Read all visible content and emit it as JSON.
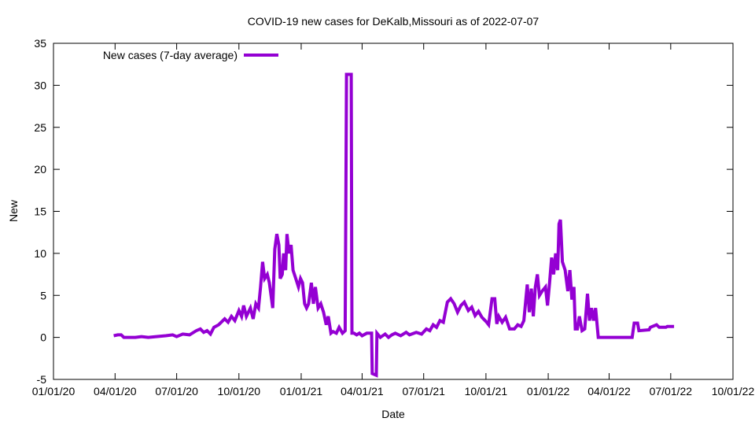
{
  "chart_data": {
    "type": "line",
    "title": "COVID-19 new cases for DeKalb,Missouri as of 2022-07-07",
    "xlabel": "Date",
    "ylabel": "New",
    "xlim": [
      "2020-01-01",
      "2022-10-01"
    ],
    "ylim": [
      -5,
      35
    ],
    "grid": false,
    "legend_placement": "top-left",
    "x_ticks": [
      "01/01/20",
      "04/01/20",
      "07/01/20",
      "10/01/20",
      "01/01/21",
      "04/01/21",
      "07/01/21",
      "10/01/21",
      "01/01/22",
      "04/01/22",
      "07/01/22",
      "10/01/22"
    ],
    "x_tick_dates": [
      "2020-01-01",
      "2020-04-01",
      "2020-07-01",
      "2020-10-01",
      "2021-01-01",
      "2021-04-01",
      "2021-07-01",
      "2021-10-01",
      "2022-01-01",
      "2022-04-01",
      "2022-07-01",
      "2022-10-01"
    ],
    "y_ticks": [
      -5,
      0,
      5,
      10,
      15,
      20,
      25,
      30,
      35
    ],
    "series": [
      {
        "name": "New cases (7-day average)",
        "color": "#9400d3",
        "points": [
          [
            "2020-03-30",
            0.2
          ],
          [
            "2020-04-05",
            0.3
          ],
          [
            "2020-04-10",
            0.3
          ],
          [
            "2020-04-14",
            0
          ],
          [
            "2020-05-01",
            0
          ],
          [
            "2020-05-10",
            0.1
          ],
          [
            "2020-05-20",
            0
          ],
          [
            "2020-06-01",
            0.1
          ],
          [
            "2020-06-15",
            0.2
          ],
          [
            "2020-06-25",
            0.3
          ],
          [
            "2020-07-01",
            0.1
          ],
          [
            "2020-07-10",
            0.4
          ],
          [
            "2020-07-20",
            0.3
          ],
          [
            "2020-07-30",
            0.8
          ],
          [
            "2020-08-05",
            1.0
          ],
          [
            "2020-08-10",
            0.6
          ],
          [
            "2020-08-15",
            0.8
          ],
          [
            "2020-08-20",
            0.4
          ],
          [
            "2020-08-25",
            1.2
          ],
          [
            "2020-09-01",
            1.5
          ],
          [
            "2020-09-10",
            2.2
          ],
          [
            "2020-09-15",
            1.8
          ],
          [
            "2020-09-20",
            2.5
          ],
          [
            "2020-09-25",
            2.0
          ],
          [
            "2020-10-01",
            3.2
          ],
          [
            "2020-10-05",
            2.5
          ],
          [
            "2020-10-08",
            3.8
          ],
          [
            "2020-10-12",
            2.5
          ],
          [
            "2020-10-18",
            3.5
          ],
          [
            "2020-10-22",
            2.2
          ],
          [
            "2020-10-26",
            4.0
          ],
          [
            "2020-10-30",
            3.5
          ],
          [
            "2020-11-02",
            6.0
          ],
          [
            "2020-11-05",
            9.0
          ],
          [
            "2020-11-08",
            7.0
          ],
          [
            "2020-11-12",
            7.5
          ],
          [
            "2020-11-15",
            6.5
          ],
          [
            "2020-11-20",
            3.5
          ],
          [
            "2020-11-23",
            10.5
          ],
          [
            "2020-11-26",
            12.3
          ],
          [
            "2020-11-29",
            11.0
          ],
          [
            "2020-12-01",
            7.0
          ],
          [
            "2020-12-04",
            7.5
          ],
          [
            "2020-12-06",
            10.0
          ],
          [
            "2020-12-09",
            8.0
          ],
          [
            "2020-12-11",
            12.3
          ],
          [
            "2020-12-14",
            10.0
          ],
          [
            "2020-12-17",
            11.0
          ],
          [
            "2020-12-20",
            8.0
          ],
          [
            "2020-12-24",
            7.0
          ],
          [
            "2020-12-28",
            6.0
          ],
          [
            "2020-12-31",
            7.0
          ],
          [
            "2021-01-03",
            6.5
          ],
          [
            "2021-01-06",
            4.0
          ],
          [
            "2021-01-09",
            3.5
          ],
          [
            "2021-01-12",
            4.0
          ],
          [
            "2021-01-16",
            6.5
          ],
          [
            "2021-01-19",
            4.0
          ],
          [
            "2021-01-22",
            6.0
          ],
          [
            "2021-01-26",
            3.5
          ],
          [
            "2021-01-30",
            4.0
          ],
          [
            "2021-02-03",
            3.0
          ],
          [
            "2021-02-07",
            1.5
          ],
          [
            "2021-02-10",
            2.5
          ],
          [
            "2021-02-14",
            0.5
          ],
          [
            "2021-02-17",
            0.7
          ],
          [
            "2021-02-22",
            0.5
          ],
          [
            "2021-02-26",
            1.2
          ],
          [
            "2021-03-03",
            0.5
          ],
          [
            "2021-03-07",
            0.8
          ],
          [
            "2021-03-09",
            31.3
          ],
          [
            "2021-03-16",
            31.3
          ],
          [
            "2021-03-17",
            0.5
          ],
          [
            "2021-03-20",
            0.5
          ],
          [
            "2021-03-24",
            0.3
          ],
          [
            "2021-03-28",
            0.5
          ],
          [
            "2021-04-01",
            0.2
          ],
          [
            "2021-04-08",
            0.5
          ],
          [
            "2021-04-15",
            0.5
          ],
          [
            "2021-04-16",
            -4.3
          ],
          [
            "2021-04-22",
            -4.5
          ],
          [
            "2021-04-23",
            0.5
          ],
          [
            "2021-04-28",
            0
          ],
          [
            "2021-05-05",
            0.4
          ],
          [
            "2021-05-10",
            0
          ],
          [
            "2021-05-15",
            0.3
          ],
          [
            "2021-05-20",
            0.5
          ],
          [
            "2021-05-28",
            0.2
          ],
          [
            "2021-06-05",
            0.6
          ],
          [
            "2021-06-10",
            0.3
          ],
          [
            "2021-06-20",
            0.6
          ],
          [
            "2021-06-28",
            0.4
          ],
          [
            "2021-07-05",
            1.0
          ],
          [
            "2021-07-10",
            0.8
          ],
          [
            "2021-07-15",
            1.5
          ],
          [
            "2021-07-20",
            1.2
          ],
          [
            "2021-07-25",
            2.0
          ],
          [
            "2021-07-30",
            1.8
          ],
          [
            "2021-08-05",
            4.2
          ],
          [
            "2021-08-10",
            4.6
          ],
          [
            "2021-08-15",
            4.0
          ],
          [
            "2021-08-20",
            3.0
          ],
          [
            "2021-08-25",
            3.8
          ],
          [
            "2021-08-30",
            4.2
          ],
          [
            "2021-09-05",
            3.2
          ],
          [
            "2021-09-10",
            3.6
          ],
          [
            "2021-09-15",
            2.6
          ],
          [
            "2021-09-20",
            3.1
          ],
          [
            "2021-09-25",
            2.4
          ],
          [
            "2021-10-01",
            1.9
          ],
          [
            "2021-10-05",
            1.5
          ],
          [
            "2021-10-10",
            4.6
          ],
          [
            "2021-10-14",
            4.6
          ],
          [
            "2021-10-17",
            1.6
          ],
          [
            "2021-10-20",
            2.5
          ],
          [
            "2021-10-25",
            1.8
          ],
          [
            "2021-10-30",
            2.4
          ],
          [
            "2021-11-05",
            1.0
          ],
          [
            "2021-11-12",
            1.0
          ],
          [
            "2021-11-17",
            1.5
          ],
          [
            "2021-11-22",
            1.3
          ],
          [
            "2021-11-26",
            2.0
          ],
          [
            "2021-12-01",
            6.3
          ],
          [
            "2021-12-04",
            3.0
          ],
          [
            "2021-12-07",
            5.8
          ],
          [
            "2021-12-10",
            2.5
          ],
          [
            "2021-12-13",
            6.0
          ],
          [
            "2021-12-16",
            7.5
          ],
          [
            "2021-12-19",
            5.0
          ],
          [
            "2021-12-23",
            5.5
          ],
          [
            "2021-12-28",
            6.0
          ],
          [
            "2021-12-31",
            3.8
          ],
          [
            "2022-01-03",
            6.5
          ],
          [
            "2022-01-06",
            9.5
          ],
          [
            "2022-01-09",
            7.5
          ],
          [
            "2022-01-12",
            10.0
          ],
          [
            "2022-01-15",
            8.0
          ],
          [
            "2022-01-17",
            13.5
          ],
          [
            "2022-01-19",
            14.0
          ],
          [
            "2022-01-22",
            9.0
          ],
          [
            "2022-01-26",
            8.0
          ],
          [
            "2022-01-30",
            5.5
          ],
          [
            "2022-02-02",
            8.0
          ],
          [
            "2022-02-05",
            4.5
          ],
          [
            "2022-02-08",
            6.0
          ],
          [
            "2022-02-10",
            1.0
          ],
          [
            "2022-02-13",
            1.0
          ],
          [
            "2022-02-16",
            2.5
          ],
          [
            "2022-02-20",
            0.8
          ],
          [
            "2022-02-24",
            1.0
          ],
          [
            "2022-02-28",
            5.2
          ],
          [
            "2022-03-03",
            2.0
          ],
          [
            "2022-03-06",
            3.5
          ],
          [
            "2022-03-09",
            2.0
          ],
          [
            "2022-03-12",
            3.5
          ],
          [
            "2022-03-16",
            0.0
          ],
          [
            "2022-03-20",
            0.0
          ],
          [
            "2022-05-05",
            0.0
          ],
          [
            "2022-05-08",
            1.7
          ],
          [
            "2022-05-13",
            1.7
          ],
          [
            "2022-05-15",
            0.8
          ],
          [
            "2022-05-30",
            0.9
          ],
          [
            "2022-06-01",
            1.2
          ],
          [
            "2022-06-10",
            1.5
          ],
          [
            "2022-06-14",
            1.2
          ],
          [
            "2022-06-24",
            1.2
          ],
          [
            "2022-06-26",
            1.3
          ],
          [
            "2022-07-06",
            1.3
          ]
        ]
      }
    ]
  }
}
